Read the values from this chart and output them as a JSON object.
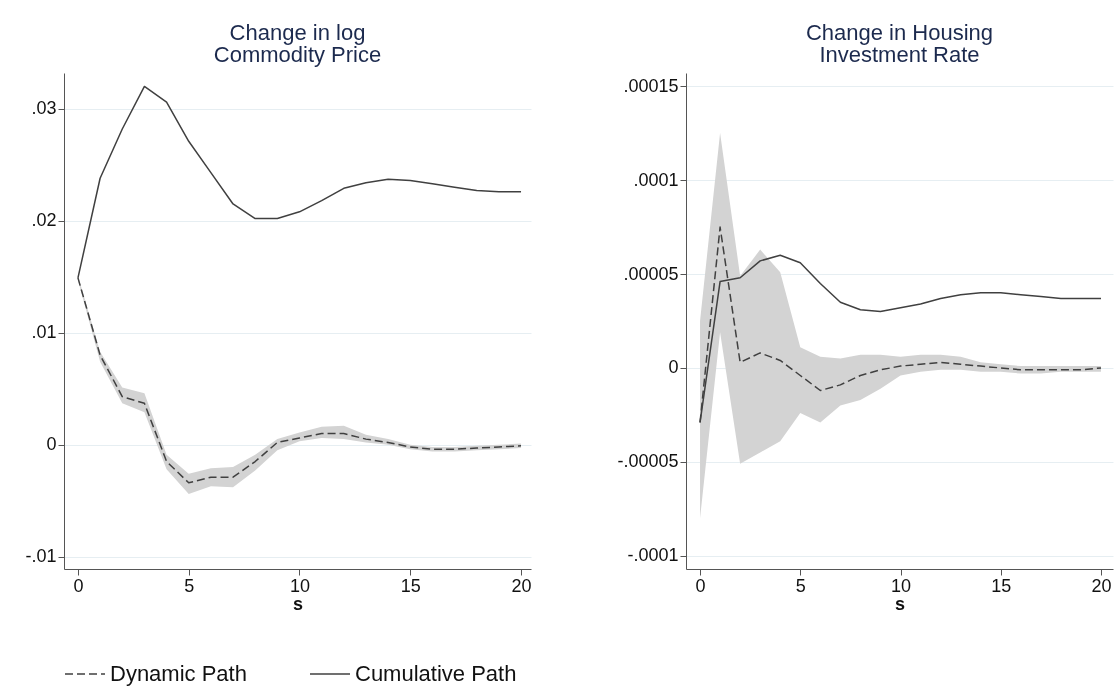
{
  "chart_data": [
    {
      "type": "line",
      "title": "Change in log\nCommodity Price",
      "xlabel": "s",
      "x": [
        0,
        1,
        2,
        3,
        4,
        5,
        6,
        7,
        8,
        9,
        10,
        11,
        12,
        13,
        14,
        15,
        16,
        17,
        18,
        19,
        20
      ],
      "series": [
        {
          "name": "Dynamic Path",
          "color": "#404040",
          "line_style": "dashed",
          "values": [
            0.0149,
            0.008,
            0.0043,
            0.0037,
            -0.0015,
            -0.0034,
            -0.0029,
            -0.0029,
            -0.0015,
            0.0002,
            0.0006,
            0.001,
            0.001,
            0.0005,
            0.0002,
            -0.0002,
            -0.0004,
            -0.0004,
            -0.0003,
            -0.0002,
            -0.0001
          ],
          "lower": [
            0.0147,
            0.0074,
            0.0037,
            0.0029,
            -0.0022,
            -0.0044,
            -0.0037,
            -0.0038,
            -0.0023,
            -0.0005,
            0.0003,
            0.0006,
            0.0005,
            0.0002,
            0,
            -0.0004,
            -0.0006,
            -0.0006,
            -0.0005,
            -0.0004,
            -0.0003
          ],
          "upper": [
            0.0151,
            0.0083,
            0.0051,
            0.0046,
            -0.0009,
            -0.0026,
            -0.0021,
            -0.002,
            -0.0009,
            0.0005,
            0.0011,
            0.0016,
            0.0017,
            0.0009,
            0.0005,
            0,
            -0.0002,
            -0.0002,
            -0.0001,
            0,
            0.0001
          ]
        },
        {
          "name": "Cumulative Path",
          "color": "#404040",
          "line_style": "solid",
          "values": [
            0.0149,
            0.0238,
            0.0282,
            0.032,
            0.0306,
            0.0271,
            0.0243,
            0.0215,
            0.0202,
            0.0202,
            0.0208,
            0.0218,
            0.0229,
            0.0234,
            0.0237,
            0.0236,
            0.0233,
            0.023,
            0.0227,
            0.0226,
            0.0226
          ]
        }
      ],
      "xlim": [
        -0.63,
        20.45
      ],
      "xticks": [
        0,
        5,
        10,
        15,
        20
      ],
      "ylim": [
        -0.0111,
        0.0332
      ],
      "yticks": [
        {
          "value": -0.01,
          "label": "-.01"
        },
        0,
        {
          "value": 0.01,
          "label": ".01"
        },
        {
          "value": 0.02,
          "label": ".02"
        },
        {
          "value": 0.03,
          "label": ".03"
        }
      ],
      "grid": "y",
      "legend": "bottom"
    },
    {
      "type": "line",
      "title": "Change in Housing\nInvestment Rate",
      "xlabel": "s",
      "x": [
        0,
        1,
        2,
        3,
        4,
        5,
        6,
        7,
        8,
        9,
        10,
        11,
        12,
        13,
        14,
        15,
        16,
        17,
        18,
        19,
        20
      ],
      "series": [
        {
          "name": "Dynamic Path",
          "color": "#404040",
          "line_style": "dashed",
          "values": [
            -2.9e-05,
            7.5e-05,
            3e-06,
            8e-06,
            4e-06,
            -4e-06,
            -1.2e-05,
            -9e-06,
            -4e-06,
            -1e-06,
            1e-06,
            2e-06,
            3e-06,
            2e-06,
            1e-06,
            0,
            -1e-06,
            -1e-06,
            -1e-06,
            -1e-06,
            0
          ],
          "lower": [
            -8e-05,
            1.9e-05,
            -5.1e-05,
            -4.5e-05,
            -3.9e-05,
            -2.4e-05,
            -2.9e-05,
            -2e-05,
            -1.7e-05,
            -1.1e-05,
            -4e-06,
            -2e-06,
            -1e-06,
            -1e-06,
            -2e-06,
            -2e-06,
            -3e-06,
            -3e-06,
            -2e-06,
            -2e-06,
            -2e-06
          ],
          "upper": [
            2.5e-05,
            0.000125,
            4.9e-05,
            6.3e-05,
            5.1e-05,
            1.1e-05,
            6e-06,
            5e-06,
            7e-06,
            7e-06,
            6e-06,
            7e-06,
            7e-06,
            6e-06,
            3e-06,
            2e-06,
            1e-06,
            1e-06,
            1e-06,
            1e-06,
            1e-06
          ]
        },
        {
          "name": "Cumulative Path",
          "color": "#404040",
          "line_style": "solid",
          "values": [
            -2.9e-05,
            4.6e-05,
            4.8e-05,
            5.7e-05,
            6e-05,
            5.6e-05,
            4.5e-05,
            3.5e-05,
            3.1e-05,
            3e-05,
            3.2e-05,
            3.4e-05,
            3.7e-05,
            3.9e-05,
            4e-05,
            4e-05,
            3.9e-05,
            3.8e-05,
            3.7e-05,
            3.7e-05,
            3.7e-05
          ]
        }
      ],
      "xlim": [
        -0.7,
        20.6
      ],
      "xticks": [
        0,
        5,
        10,
        15,
        20
      ],
      "ylim": [
        -0.000107,
        0.000157
      ],
      "yticks": [
        {
          "value": -0.0001,
          "label": "-.0001"
        },
        {
          "value": -5e-05,
          "label": "-.00005"
        },
        0,
        {
          "value": 5e-05,
          "label": ".00005"
        },
        {
          "value": 0.0001,
          "label": ".0001"
        },
        {
          "value": 0.00015,
          "label": ".00015"
        }
      ],
      "grid": "y",
      "legend": "bottom"
    }
  ]
}
